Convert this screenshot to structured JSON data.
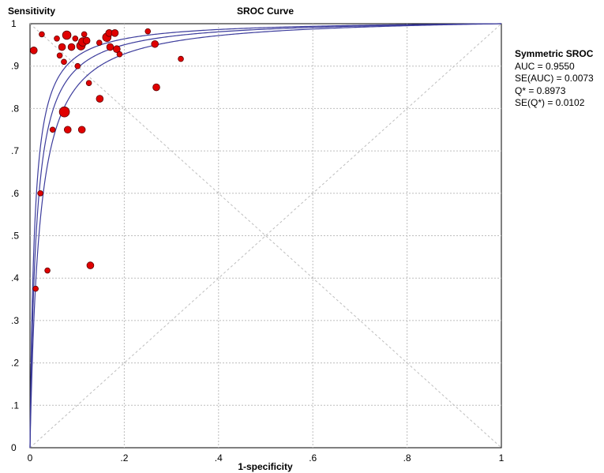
{
  "chart_data": {
    "type": "scatter",
    "title": "SROC Curve",
    "xlabel": "1-specificity",
    "ylabel": "Sensitivity",
    "xlim": [
      0,
      1
    ],
    "ylim": [
      0,
      1
    ],
    "grid": true,
    "x_ticks": [
      {
        "value": 0,
        "label": "0"
      },
      {
        "value": 0.2,
        "label": ".2"
      },
      {
        "value": 0.4,
        "label": ".4"
      },
      {
        "value": 0.6,
        "label": ".6"
      },
      {
        "value": 0.8,
        "label": ".8"
      },
      {
        "value": 1,
        "label": "1"
      }
    ],
    "y_ticks": [
      {
        "value": 0,
        "label": "0"
      },
      {
        "value": 0.1,
        "label": ".1"
      },
      {
        "value": 0.2,
        "label": ".2"
      },
      {
        "value": 0.3,
        "label": ".3"
      },
      {
        "value": 0.4,
        "label": ".4"
      },
      {
        "value": 0.5,
        "label": ".5"
      },
      {
        "value": 0.6,
        "label": ".6"
      },
      {
        "value": 0.7,
        "label": ".7"
      },
      {
        "value": 0.8,
        "label": ".8"
      },
      {
        "value": 0.9,
        "label": ".9"
      },
      {
        "value": 1,
        "label": "1"
      }
    ],
    "reference_lines": [
      "diagonal y = x",
      "anti-diagonal y = 1 - x"
    ],
    "curve": {
      "type": "symmetric SROC",
      "dor": 76.4,
      "band": [
        52.0,
        108.0
      ]
    },
    "points": [
      {
        "x": 0.008,
        "y": 0.937,
        "w": 2
      },
      {
        "x": 0.025,
        "y": 0.975,
        "w": 1
      },
      {
        "x": 0.057,
        "y": 0.965,
        "w": 1
      },
      {
        "x": 0.063,
        "y": 0.925,
        "w": 1
      },
      {
        "x": 0.068,
        "y": 0.945,
        "w": 2
      },
      {
        "x": 0.072,
        "y": 0.91,
        "w": 1
      },
      {
        "x": 0.078,
        "y": 0.973,
        "w": 3
      },
      {
        "x": 0.088,
        "y": 0.945,
        "w": 2
      },
      {
        "x": 0.096,
        "y": 0.965,
        "w": 1
      },
      {
        "x": 0.101,
        "y": 0.9,
        "w": 1
      },
      {
        "x": 0.108,
        "y": 0.948,
        "w": 3
      },
      {
        "x": 0.112,
        "y": 0.957,
        "w": 3
      },
      {
        "x": 0.115,
        "y": 0.975,
        "w": 1
      },
      {
        "x": 0.12,
        "y": 0.96,
        "w": 2
      },
      {
        "x": 0.125,
        "y": 0.86,
        "w": 1
      },
      {
        "x": 0.147,
        "y": 0.955,
        "w": 1
      },
      {
        "x": 0.163,
        "y": 0.968,
        "w": 3
      },
      {
        "x": 0.168,
        "y": 0.978,
        "w": 2
      },
      {
        "x": 0.17,
        "y": 0.945,
        "w": 2
      },
      {
        "x": 0.18,
        "y": 0.978,
        "w": 2
      },
      {
        "x": 0.184,
        "y": 0.94,
        "w": 2
      },
      {
        "x": 0.19,
        "y": 0.928,
        "w": 1
      },
      {
        "x": 0.25,
        "y": 0.982,
        "w": 1
      },
      {
        "x": 0.265,
        "y": 0.952,
        "w": 2
      },
      {
        "x": 0.268,
        "y": 0.85,
        "w": 2
      },
      {
        "x": 0.32,
        "y": 0.917,
        "w": 1
      },
      {
        "x": 0.148,
        "y": 0.823,
        "w": 2
      },
      {
        "x": 0.073,
        "y": 0.792,
        "w": 4
      },
      {
        "x": 0.048,
        "y": 0.75,
        "w": 1
      },
      {
        "x": 0.08,
        "y": 0.75,
        "w": 2
      },
      {
        "x": 0.11,
        "y": 0.75,
        "w": 2
      },
      {
        "x": 0.022,
        "y": 0.6,
        "w": 1
      },
      {
        "x": 0.128,
        "y": 0.43,
        "w": 2
      },
      {
        "x": 0.037,
        "y": 0.418,
        "w": 1
      },
      {
        "x": 0.012,
        "y": 0.375,
        "w": 1
      }
    ]
  },
  "stats": {
    "heading": "Symmetric SROC",
    "auc": "AUC = 0.9550",
    "se_auc": "SE(AUC) = 0.0073",
    "q": "Q* = 0.8973",
    "se_q": "SE(Q*) = 0.0102"
  },
  "colors": {
    "curve": "#3c3c9c",
    "point_fill": "#e00000",
    "point_stroke": "#600000",
    "grid": "#bdbdbd",
    "axis": "#000000"
  }
}
